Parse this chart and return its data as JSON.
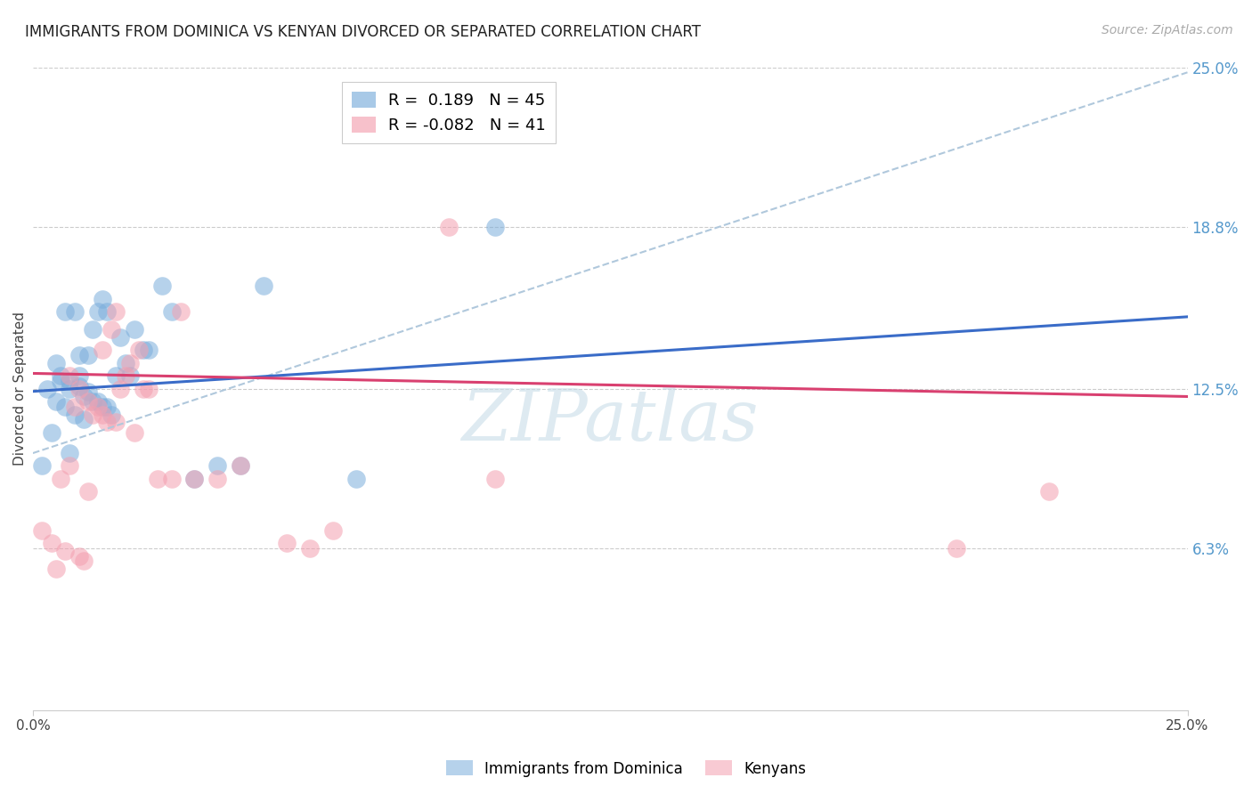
{
  "title": "IMMIGRANTS FROM DOMINICA VS KENYAN DIVORCED OR SEPARATED CORRELATION CHART",
  "source": "Source: ZipAtlas.com",
  "ylabel": "Divorced or Separated",
  "xlim": [
    0.0,
    0.25
  ],
  "ylim": [
    0.0,
    0.25
  ],
  "grid_color": "#cccccc",
  "background_color": "#ffffff",
  "blue_color": "#7aaddb",
  "pink_color": "#f4a0b0",
  "blue_line_color": "#3a6cc8",
  "pink_line_color": "#d94070",
  "dashed_line_color": "#b0c8dc",
  "watermark": "ZIPatlas",
  "blue_scatter_x": [
    0.002,
    0.003,
    0.004,
    0.005,
    0.005,
    0.006,
    0.006,
    0.007,
    0.007,
    0.008,
    0.008,
    0.008,
    0.009,
    0.009,
    0.01,
    0.01,
    0.01,
    0.011,
    0.011,
    0.012,
    0.012,
    0.013,
    0.013,
    0.014,
    0.014,
    0.015,
    0.015,
    0.016,
    0.016,
    0.017,
    0.018,
    0.019,
    0.02,
    0.021,
    0.022,
    0.024,
    0.025,
    0.028,
    0.03,
    0.035,
    0.04,
    0.045,
    0.05,
    0.07,
    0.1
  ],
  "blue_scatter_y": [
    0.095,
    0.125,
    0.108,
    0.12,
    0.135,
    0.13,
    0.128,
    0.118,
    0.155,
    0.1,
    0.125,
    0.128,
    0.115,
    0.155,
    0.126,
    0.13,
    0.138,
    0.113,
    0.122,
    0.124,
    0.138,
    0.12,
    0.148,
    0.12,
    0.155,
    0.118,
    0.16,
    0.118,
    0.155,
    0.115,
    0.13,
    0.145,
    0.135,
    0.13,
    0.148,
    0.14,
    0.14,
    0.165,
    0.155,
    0.09,
    0.095,
    0.095,
    0.165,
    0.09,
    0.188
  ],
  "pink_scatter_x": [
    0.002,
    0.004,
    0.005,
    0.006,
    0.007,
    0.008,
    0.008,
    0.009,
    0.01,
    0.01,
    0.011,
    0.012,
    0.012,
    0.013,
    0.014,
    0.015,
    0.015,
    0.016,
    0.017,
    0.018,
    0.018,
    0.019,
    0.02,
    0.021,
    0.022,
    0.023,
    0.024,
    0.025,
    0.027,
    0.03,
    0.032,
    0.035,
    0.04,
    0.045,
    0.055,
    0.06,
    0.065,
    0.09,
    0.1,
    0.2,
    0.22
  ],
  "pink_scatter_y": [
    0.07,
    0.065,
    0.055,
    0.09,
    0.062,
    0.095,
    0.13,
    0.118,
    0.06,
    0.125,
    0.058,
    0.12,
    0.085,
    0.115,
    0.118,
    0.115,
    0.14,
    0.112,
    0.148,
    0.112,
    0.155,
    0.125,
    0.13,
    0.135,
    0.108,
    0.14,
    0.125,
    0.125,
    0.09,
    0.09,
    0.155,
    0.09,
    0.09,
    0.095,
    0.065,
    0.063,
    0.07,
    0.188,
    0.09,
    0.063,
    0.085
  ],
  "blue_line_y_start": 0.124,
  "blue_line_y_end": 0.153,
  "pink_line_y_start": 0.131,
  "pink_line_y_end": 0.122,
  "dashed_line_y_start": 0.1,
  "dashed_line_y_end": 0.248,
  "right_yticks": [
    0.063,
    0.125,
    0.188,
    0.25
  ],
  "right_yticklabels": [
    "6.3%",
    "12.5%",
    "18.8%",
    "25.0%"
  ],
  "title_fontsize": 12,
  "source_fontsize": 10,
  "legend_r1_label": "R =  0.189   N = 45",
  "legend_r2_label": "R = -0.082   N = 41"
}
